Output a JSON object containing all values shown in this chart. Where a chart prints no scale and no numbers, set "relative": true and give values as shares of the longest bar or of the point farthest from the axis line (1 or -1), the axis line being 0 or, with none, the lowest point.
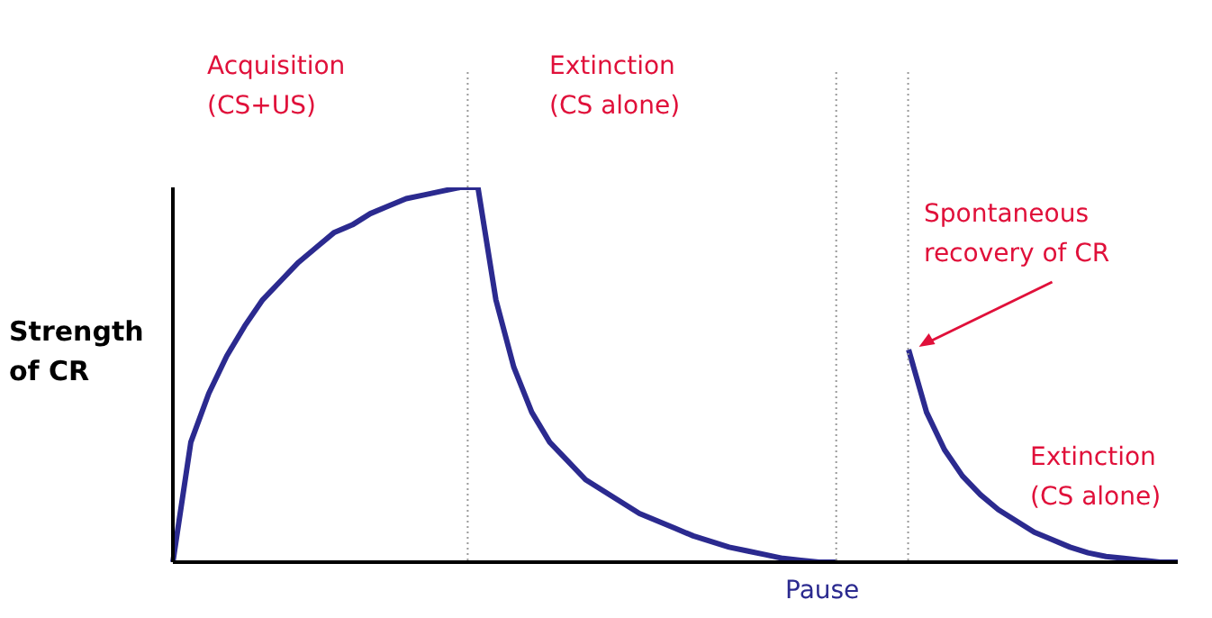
{
  "chart_data": {
    "type": "line",
    "relative": true,
    "ylabel": "Strength\nof CR",
    "xlabel": "Pause",
    "annotations": [
      "Acquisition\n(CS+US)",
      "Extinction\n(CS alone)",
      "Spontaneous\nrecovery of CR",
      "Extinction\n(CS alone)"
    ],
    "categories": [
      null,
      null,
      null,
      null,
      null,
      null,
      null,
      null,
      null,
      null,
      null,
      null,
      null,
      null,
      null,
      null,
      null,
      null,
      null,
      null,
      null,
      null,
      null,
      null,
      null,
      null,
      null,
      null,
      null,
      null,
      null,
      null,
      null,
      null,
      null,
      null,
      null,
      null,
      null,
      null,
      null,
      null,
      null,
      null,
      null,
      null,
      null,
      null,
      null,
      null,
      null,
      null,
      null,
      null,
      null,
      null,
      null
    ],
    "series": [
      {
        "color": "#2b2a8f",
        "values": [
          0,
          0.32,
          0.45,
          0.55,
          0.63,
          0.7,
          0.75,
          0.8,
          0.84,
          0.88,
          0.9,
          0.93,
          0.95,
          0.97,
          0.98,
          0.99,
          1,
          1,
          0.7,
          0.52,
          0.4,
          0.32,
          0.27,
          0.22,
          0.19,
          0.16,
          0.13,
          0.11,
          0.09,
          0.07,
          0.055,
          0.04,
          0.03,
          0.02,
          0.01,
          0.005,
          0,
          0,
          null,
          null,
          null,
          null,
          null,
          null,
          null,
          null,
          null,
          null,
          null,
          null,
          null,
          null,
          null,
          null,
          null,
          null,
          null
        ]
      },
      {
        "color": "#2b2a8f",
        "values": [
          null,
          null,
          null,
          null,
          null,
          null,
          null,
          null,
          null,
          null,
          null,
          null,
          null,
          null,
          null,
          null,
          null,
          null,
          null,
          null,
          null,
          null,
          null,
          null,
          null,
          null,
          null,
          null,
          null,
          null,
          null,
          null,
          null,
          null,
          null,
          null,
          null,
          null,
          null,
          null,
          null,
          0.567,
          0.4,
          0.3,
          0.23,
          0.18,
          0.14,
          0.11,
          0.08,
          0.06,
          0.04,
          0.025,
          0.015,
          0.01,
          0.005,
          0,
          0
        ]
      }
    ]
  }
}
